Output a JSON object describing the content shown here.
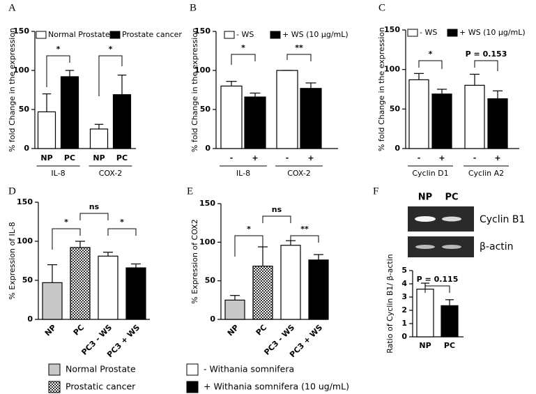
{
  "chart_data": [
    {
      "type": "grouped-bar",
      "panel": "A",
      "ylabel": "% fold Change in the expression",
      "ylim": [
        0,
        150
      ],
      "yticks": [
        0,
        50,
        100,
        150
      ],
      "categories": [
        "IL-8",
        "COX-2"
      ],
      "x_labels": [
        "NP",
        "PC"
      ],
      "series": [
        {
          "name": "Normal Prostate",
          "color": "#ffffff",
          "values": [
            47,
            25
          ],
          "errors": [
            23,
            6
          ]
        },
        {
          "name": "Prostate cancer",
          "color": "#000000",
          "values": [
            92,
            69
          ],
          "errors": [
            8,
            25
          ]
        }
      ],
      "annotations": [
        "*",
        "*"
      ]
    },
    {
      "type": "grouped-bar",
      "panel": "B",
      "ylabel": "% fold Change in the expression",
      "ylim": [
        0,
        150
      ],
      "yticks": [
        0,
        50,
        100,
        150
      ],
      "categories": [
        "IL-8",
        "COX-2"
      ],
      "x_labels": [
        "-",
        "+"
      ],
      "series": [
        {
          "name": "- WS",
          "color": "#ffffff",
          "values": [
            80,
            100
          ],
          "errors": [
            6,
            0
          ]
        },
        {
          "name": "+ WS (10 μg/mL)",
          "color": "#000000",
          "values": [
            66,
            77
          ],
          "errors": [
            5,
            7
          ]
        }
      ],
      "annotations": [
        "*",
        "**"
      ]
    },
    {
      "type": "grouped-bar",
      "panel": "C",
      "ylabel": "% fold Change in the expression",
      "ylim": [
        0,
        150
      ],
      "yticks": [
        0,
        50,
        100,
        150
      ],
      "categories": [
        "Cyclin D1",
        "Cyclin A2"
      ],
      "x_labels": [
        "-",
        "+"
      ],
      "series": [
        {
          "name": "- WS",
          "color": "#ffffff",
          "values": [
            87,
            80
          ],
          "errors": [
            8,
            14
          ]
        },
        {
          "name": "+ WS (10 μg/mL)",
          "color": "#000000",
          "values": [
            69,
            63
          ],
          "errors": [
            6,
            10
          ]
        }
      ],
      "annotations": [
        "*",
        "P = 0.153"
      ]
    },
    {
      "type": "bar",
      "panel": "D",
      "ylabel": "% Expression of IL-8",
      "ylim": [
        0,
        150
      ],
      "yticks": [
        0,
        50,
        100,
        150
      ],
      "categories": [
        "NP",
        "PC",
        "PC3 - WS",
        "PC3 + WS"
      ],
      "values": [
        47,
        92,
        81,
        66
      ],
      "errors": [
        23,
        8,
        5,
        5
      ],
      "colors": [
        "#c8c8c8",
        "#808080",
        "#ffffff",
        "#000000"
      ],
      "patterned": [
        false,
        true,
        false,
        false
      ],
      "annotations": [
        "*",
        "ns",
        "*"
      ],
      "legend": [
        {
          "name": "Normal Prostate",
          "color": "#c8c8c8",
          "patterned": false
        },
        {
          "name": "Prostatic cancer",
          "color": "#808080",
          "patterned": true
        }
      ]
    },
    {
      "type": "bar",
      "panel": "E",
      "ylabel": "% Expression of COX2",
      "ylim": [
        0,
        150
      ],
      "yticks": [
        0,
        50,
        100,
        150
      ],
      "categories": [
        "NP",
        "PC",
        "PC3 - WS",
        "PC3 + WS"
      ],
      "values": [
        25,
        69,
        96,
        77
      ],
      "errors": [
        6,
        25,
        6,
        7
      ],
      "colors": [
        "#c8c8c8",
        "#808080",
        "#ffffff",
        "#000000"
      ],
      "patterned": [
        false,
        true,
        false,
        false
      ],
      "annotations": [
        "*",
        "ns",
        "**"
      ],
      "legend": [
        {
          "name": "- Withania somnifera",
          "color": "#ffffff",
          "patterned": false
        },
        {
          "name": "+ Withania somnifera (10 ug/mL)",
          "color": "#000000",
          "patterned": false
        }
      ]
    },
    {
      "type": "bar",
      "panel": "F",
      "ylabel": "Ratio of Cyclin B1/ β-actin",
      "ylim": [
        0,
        5
      ],
      "yticks": [
        0,
        1,
        2,
        3,
        4,
        5
      ],
      "categories": [
        "NP",
        "PC"
      ],
      "values": [
        3.6,
        2.35
      ],
      "errors": [
        0.45,
        0.45
      ],
      "colors": [
        "#ffffff",
        "#000000"
      ],
      "patterned": [
        false,
        false
      ],
      "annotations": [
        "P = 0.115"
      ],
      "gel": {
        "lanes": [
          "NP",
          "PC"
        ],
        "bands": [
          "Cyclin B1",
          "β-actin"
        ]
      }
    }
  ]
}
